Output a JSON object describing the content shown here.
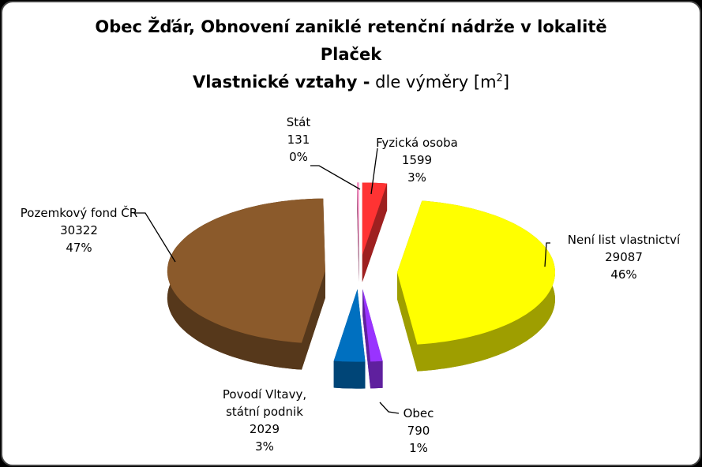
{
  "chart_data": {
    "type": "pie3d",
    "title": "Obec Žďár, Obnovení zaniklé retenční nádrže v lokalitě",
    "title_line2": "Plaček",
    "subtitle": {
      "bold": "Vlastnické vztahy -",
      "normal": "dle výměry [m",
      "sup": "2",
      "end": "]"
    },
    "categories": [
      "Fyzická osoba",
      "Není list vlastnictví",
      "Obec",
      "Povodí Vltavy, státní podnik",
      "Pozemkový fond ČR",
      "Stát"
    ],
    "values": [
      1599,
      29087,
      790,
      2029,
      30322,
      131
    ],
    "percent_labels": [
      "3%",
      "46%",
      "1%",
      "3%",
      "47%",
      "0%"
    ],
    "colors": [
      "#ff3333",
      "#ffff00",
      "#9933ff",
      "#0070c0",
      "#8b5a2b",
      "#ff99cc"
    ]
  }
}
